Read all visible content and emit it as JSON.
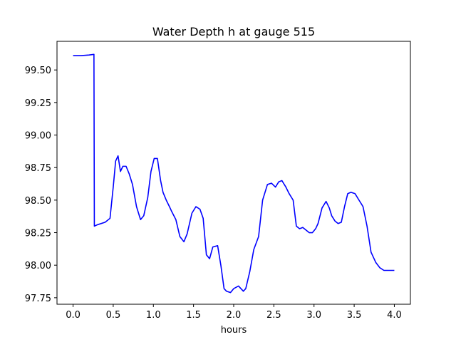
{
  "chart_data": {
    "type": "line",
    "title": "Water Depth h at gauge 515",
    "xlabel": "hours",
    "ylabel": "",
    "xlim": [
      -0.2,
      4.2
    ],
    "ylim": [
      97.7,
      99.72
    ],
    "xticks": [
      0.0,
      0.5,
      1.0,
      1.5,
      2.0,
      2.5,
      3.0,
      3.5,
      4.0
    ],
    "xtick_labels": [
      "0.0",
      "0.5",
      "1.0",
      "1.5",
      "2.0",
      "2.5",
      "3.0",
      "3.5",
      "4.0"
    ],
    "yticks": [
      97.75,
      98.0,
      98.25,
      98.5,
      98.75,
      99.0,
      99.25,
      99.5
    ],
    "ytick_labels": [
      "97.75",
      "98.00",
      "98.25",
      "98.50",
      "98.75",
      "99.00",
      "99.25",
      "99.50"
    ],
    "grid": false,
    "series": [
      {
        "color": "#0000ff",
        "x": [
          0.0,
          0.1,
          0.2,
          0.26,
          0.265,
          0.3,
          0.4,
          0.46,
          0.5,
          0.53,
          0.56,
          0.59,
          0.62,
          0.66,
          0.7,
          0.74,
          0.79,
          0.84,
          0.88,
          0.93,
          0.97,
          1.01,
          1.05,
          1.09,
          1.12,
          1.16,
          1.2,
          1.23,
          1.28,
          1.33,
          1.38,
          1.42,
          1.48,
          1.53,
          1.58,
          1.62,
          1.66,
          1.7,
          1.74,
          1.8,
          1.84,
          1.88,
          1.91,
          1.96,
          2.0,
          2.06,
          2.12,
          2.15,
          2.2,
          2.25,
          2.31,
          2.36,
          2.42,
          2.47,
          2.52,
          2.56,
          2.6,
          2.65,
          2.69,
          2.74,
          2.78,
          2.82,
          2.86,
          2.9,
          2.94,
          2.98,
          3.02,
          3.05,
          3.1,
          3.15,
          3.19,
          3.22,
          3.26,
          3.3,
          3.34,
          3.38,
          3.42,
          3.46,
          3.51,
          3.56,
          3.61,
          3.66,
          3.71,
          3.77,
          3.82,
          3.87,
          3.92,
          3.97,
          4.0
        ],
        "y": [
          99.61,
          99.61,
          99.615,
          99.62,
          98.3,
          98.31,
          98.33,
          98.36,
          98.6,
          98.8,
          98.84,
          98.72,
          98.76,
          98.76,
          98.7,
          98.62,
          98.45,
          98.35,
          98.38,
          98.52,
          98.72,
          98.82,
          98.82,
          98.65,
          98.56,
          98.5,
          98.45,
          98.41,
          98.35,
          98.22,
          98.18,
          98.24,
          98.4,
          98.45,
          98.43,
          98.36,
          98.08,
          98.05,
          98.14,
          98.15,
          98.0,
          97.82,
          97.8,
          97.79,
          97.82,
          97.84,
          97.8,
          97.82,
          97.95,
          98.12,
          98.22,
          98.5,
          98.62,
          98.63,
          98.6,
          98.64,
          98.65,
          98.6,
          98.55,
          98.5,
          98.3,
          98.28,
          98.29,
          98.27,
          98.25,
          98.25,
          98.28,
          98.32,
          98.44,
          98.49,
          98.44,
          98.38,
          98.34,
          98.32,
          98.33,
          98.45,
          98.55,
          98.56,
          98.55,
          98.5,
          98.45,
          98.3,
          98.1,
          98.02,
          97.98,
          97.96,
          97.96,
          97.96,
          97.96
        ]
      }
    ]
  }
}
